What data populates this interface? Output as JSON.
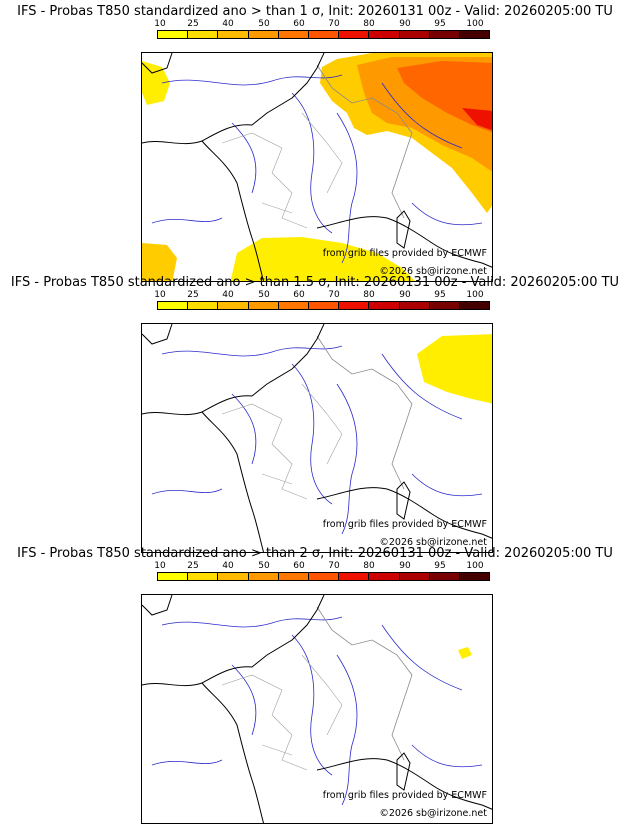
{
  "colorbar": {
    "ticks": [
      "10",
      "25",
      "40",
      "50",
      "60",
      "70",
      "80",
      "90",
      "95",
      "100"
    ],
    "colors": [
      "#ffff00",
      "#ffdd00",
      "#ffbb00",
      "#ff9900",
      "#ff7700",
      "#ff5500",
      "#ee1100",
      "#cc0000",
      "#aa0000",
      "#770000",
      "#440000"
    ]
  },
  "colors": {
    "coast": "#000000",
    "rivers": "#2a2acc",
    "borders": "#a0a0a0"
  },
  "panels": [
    {
      "title": "IFS - Probas T850  standardized ano > than 1 σ, Init: 20260131 00z - Valid: 20260205:00 TU",
      "provider": "from grib files provided by ECMWF",
      "copyright": "©2026 sb@irizone.net"
    },
    {
      "title": "IFS - Probas T850  standardized ano > than 1.5 σ, Init: 20260131 00z - Valid: 20260205:00 TU",
      "provider": "from grib files provided by ECMWF",
      "copyright": "©2026 sb@irizone.net"
    },
    {
      "title": "IFS - Probas T850  standardized ano > than 2 σ, Init: 20260131 00z - Valid: 20260205:00 TU",
      "provider": "from grib files provided by ECMWF",
      "copyright": "©2026 sb@irizone.net"
    }
  ]
}
